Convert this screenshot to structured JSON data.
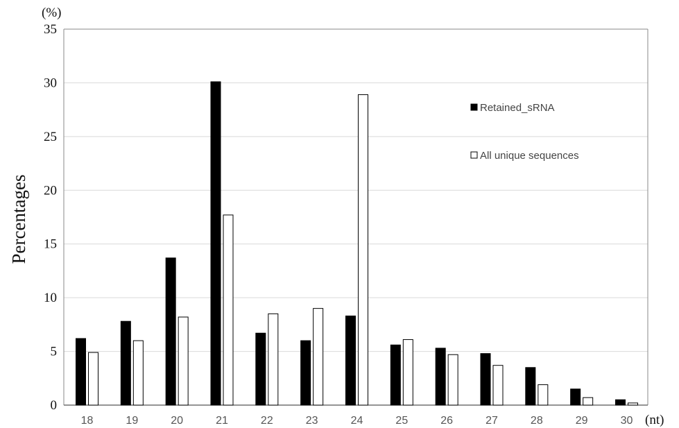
{
  "chart_data": {
    "type": "bar",
    "ylabel": "Percentages",
    "y_unit": "(%)",
    "x_unit": "(nt)",
    "categories": [
      "18",
      "19",
      "20",
      "21",
      "22",
      "23",
      "24",
      "25",
      "26",
      "27",
      "28",
      "29",
      "30"
    ],
    "ylim": [
      0,
      35
    ],
    "yticks": [
      "0",
      "5",
      "10",
      "15",
      "20",
      "25",
      "30",
      "35"
    ],
    "grid": true,
    "legend_position": "top-right",
    "series": [
      {
        "name": "Retained_sRNA",
        "color": "#000000",
        "values": [
          6.2,
          7.8,
          13.7,
          30.1,
          6.7,
          6.0,
          8.3,
          5.6,
          5.3,
          4.8,
          3.5,
          1.5,
          0.5
        ]
      },
      {
        "name": "All unique sequences",
        "color": "#ffffff",
        "values": [
          4.9,
          6.0,
          8.2,
          17.7,
          8.5,
          9.0,
          28.9,
          6.1,
          4.7,
          3.7,
          1.9,
          0.7,
          0.2
        ]
      }
    ]
  }
}
